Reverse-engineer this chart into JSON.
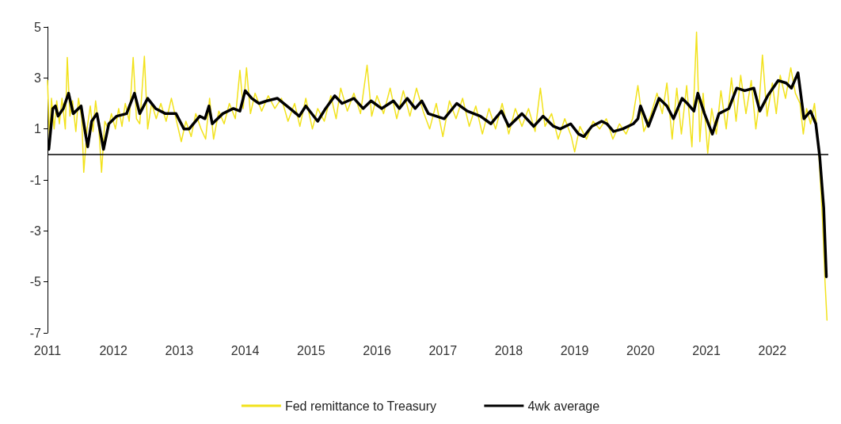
{
  "chart_data": {
    "type": "line",
    "x": [
      2011.0,
      2011.03,
      2011.06,
      2011.1,
      2011.14,
      2011.18,
      2011.22,
      2011.27,
      2011.3,
      2011.34,
      2011.38,
      2011.43,
      2011.47,
      2011.52,
      2011.55,
      2011.6,
      2011.65,
      2011.69,
      2011.73,
      2011.78,
      2011.82,
      2011.87,
      2011.92,
      2011.97,
      2012.03,
      2012.08,
      2012.13,
      2012.18,
      2012.24,
      2012.3,
      2012.35,
      2012.4,
      2012.47,
      2012.52,
      2012.58,
      2012.65,
      2012.72,
      2012.8,
      2012.88,
      2012.95,
      2013.03,
      2013.1,
      2013.18,
      2013.25,
      2013.33,
      2013.4,
      2013.46,
      2013.52,
      2013.6,
      2013.68,
      2013.76,
      2013.85,
      2013.92,
      2013.97,
      2014.02,
      2014.08,
      2014.15,
      2014.25,
      2014.35,
      2014.45,
      2014.55,
      2014.65,
      2014.75,
      2014.83,
      2014.92,
      2015.02,
      2015.1,
      2015.2,
      2015.3,
      2015.38,
      2015.45,
      2015.55,
      2015.65,
      2015.75,
      2015.85,
      2015.92,
      2016.0,
      2016.1,
      2016.2,
      2016.3,
      2016.4,
      2016.5,
      2016.6,
      2016.7,
      2016.8,
      2016.9,
      2017.0,
      2017.1,
      2017.2,
      2017.3,
      2017.4,
      2017.5,
      2017.6,
      2017.7,
      2017.8,
      2017.9,
      2018.0,
      2018.1,
      2018.2,
      2018.3,
      2018.4,
      2018.48,
      2018.55,
      2018.65,
      2018.75,
      2018.85,
      2018.95,
      2019.0,
      2019.08,
      2019.18,
      2019.28,
      2019.38,
      2019.48,
      2019.58,
      2019.68,
      2019.78,
      2019.88,
      2019.96,
      2020.05,
      2020.15,
      2020.25,
      2020.33,
      2020.4,
      2020.48,
      2020.55,
      2020.62,
      2020.7,
      2020.78,
      2020.85,
      2020.9,
      2020.95,
      2021.02,
      2021.08,
      2021.15,
      2021.22,
      2021.3,
      2021.38,
      2021.45,
      2021.52,
      2021.6,
      2021.68,
      2021.75,
      2021.8,
      2021.85,
      2021.92,
      2022.0,
      2022.06,
      2022.12,
      2022.2,
      2022.28,
      2022.35,
      2022.42,
      2022.47,
      2022.52,
      2022.58,
      2022.64,
      2022.7,
      2022.76,
      2022.8,
      2022.83
    ],
    "series": [
      {
        "name": "Fed remittance to Treasury",
        "color": "#f2e21c",
        "values": [
          2.9,
          0.6,
          2.2,
          1.0,
          2.1,
          1.2,
          2.2,
          1.0,
          3.8,
          1.5,
          2.1,
          0.9,
          2.2,
          1.4,
          -0.7,
          1.0,
          1.9,
          0.9,
          2.1,
          1.0,
          -0.7,
          1.3,
          1.0,
          1.6,
          1.0,
          1.8,
          1.1,
          2.0,
          1.3,
          3.8,
          1.4,
          1.2,
          3.85,
          1.0,
          2.0,
          1.4,
          2.0,
          1.3,
          2.2,
          1.4,
          0.5,
          1.3,
          0.7,
          1.6,
          1.0,
          0.6,
          2.2,
          0.6,
          1.7,
          1.2,
          2.0,
          1.4,
          3.3,
          1.8,
          3.4,
          1.6,
          2.4,
          1.7,
          2.3,
          1.8,
          2.2,
          1.3,
          2.0,
          1.1,
          2.2,
          1.0,
          1.8,
          1.3,
          2.3,
          1.4,
          2.6,
          1.7,
          2.4,
          1.6,
          3.5,
          1.5,
          2.3,
          1.6,
          2.6,
          1.4,
          2.5,
          1.5,
          2.6,
          1.7,
          1.0,
          2.0,
          0.7,
          2.1,
          1.4,
          2.2,
          1.1,
          1.9,
          0.8,
          1.8,
          1.0,
          2.0,
          0.8,
          1.8,
          1.1,
          1.8,
          0.9,
          2.6,
          1.1,
          1.6,
          0.6,
          1.4,
          0.7,
          0.1,
          1.1,
          0.6,
          1.3,
          1.0,
          1.4,
          0.6,
          1.2,
          0.8,
          1.4,
          2.7,
          0.9,
          1.5,
          2.4,
          1.6,
          2.8,
          0.6,
          2.6,
          0.8,
          2.7,
          0.3,
          4.8,
          0.5,
          2.4,
          0.05,
          1.8,
          0.8,
          2.5,
          1.0,
          3.0,
          1.3,
          3.1,
          1.6,
          2.9,
          1.0,
          2.0,
          3.9,
          1.5,
          2.8,
          1.6,
          3.1,
          2.2,
          3.4,
          2.4,
          2.0,
          0.8,
          1.8,
          1.2,
          2.0,
          0.3,
          -2.5,
          -5.0,
          -6.5
        ]
      },
      {
        "name": "4wk average",
        "color": "#000000",
        "x": [
          2011.02,
          2011.08,
          2011.12,
          2011.16,
          2011.24,
          2011.32,
          2011.39,
          2011.51,
          2011.57,
          2011.61,
          2011.67,
          2011.75,
          2011.85,
          2011.93,
          2012.05,
          2012.2,
          2012.32,
          2012.4,
          2012.52,
          2012.64,
          2012.79,
          2012.95,
          2013.07,
          2013.15,
          2013.31,
          2013.39,
          2013.45,
          2013.5,
          2013.66,
          2013.82,
          2013.92,
          2014.0,
          2014.1,
          2014.21,
          2014.33,
          2014.49,
          2014.68,
          2014.82,
          2014.92,
          2015.1,
          2015.22,
          2015.36,
          2015.47,
          2015.65,
          2015.79,
          2015.91,
          2016.07,
          2016.25,
          2016.34,
          2016.46,
          2016.58,
          2016.68,
          2016.78,
          2016.9,
          2017.02,
          2017.21,
          2017.37,
          2017.57,
          2017.73,
          2017.89,
          2018.0,
          2018.2,
          2018.38,
          2018.52,
          2018.68,
          2018.78,
          2018.94,
          2019.06,
          2019.14,
          2019.26,
          2019.41,
          2019.49,
          2019.59,
          2019.73,
          2019.89,
          2019.96,
          2020.0,
          2020.12,
          2020.28,
          2020.4,
          2020.5,
          2020.63,
          2020.71,
          2020.81,
          2020.87,
          2020.97,
          2021.09,
          2021.19,
          2021.34,
          2021.46,
          2021.58,
          2021.72,
          2021.81,
          2021.93,
          2022.09,
          2022.21,
          2022.29,
          2022.39,
          2022.48,
          2022.58,
          2022.66,
          2022.72,
          2022.78,
          2022.82
        ],
        "values": [
          0.2,
          1.8,
          1.9,
          1.5,
          1.8,
          2.4,
          1.6,
          1.9,
          0.9,
          0.3,
          1.3,
          1.6,
          0.2,
          1.2,
          1.5,
          1.6,
          2.4,
          1.6,
          2.2,
          1.8,
          1.6,
          1.6,
          1.0,
          1.0,
          1.5,
          1.4,
          1.9,
          1.2,
          1.6,
          1.8,
          1.7,
          2.5,
          2.2,
          2.0,
          2.1,
          2.2,
          1.8,
          1.5,
          1.9,
          1.3,
          1.8,
          2.3,
          2.0,
          2.2,
          1.8,
          2.1,
          1.8,
          2.1,
          1.8,
          2.2,
          1.8,
          2.1,
          1.6,
          1.5,
          1.4,
          2.0,
          1.7,
          1.5,
          1.2,
          1.7,
          1.1,
          1.6,
          1.1,
          1.5,
          1.1,
          1.0,
          1.2,
          0.8,
          0.7,
          1.1,
          1.3,
          1.2,
          0.9,
          1.0,
          1.2,
          1.4,
          1.9,
          1.1,
          2.2,
          1.9,
          1.4,
          2.2,
          2.0,
          1.7,
          2.4,
          1.6,
          0.8,
          1.6,
          1.8,
          2.6,
          2.5,
          2.6,
          1.7,
          2.3,
          2.9,
          2.8,
          2.6,
          3.2,
          1.4,
          1.7,
          1.2,
          -0.1,
          -2.1,
          -4.8
        ]
      }
    ],
    "xlim": [
      2011,
      2022.85
    ],
    "xticks": [
      2011,
      2012,
      2013,
      2014,
      2015,
      2016,
      2017,
      2018,
      2019,
      2020,
      2021,
      2022
    ],
    "ylim": [
      -7,
      5
    ],
    "yticks": [
      -7,
      -5,
      -3,
      -1,
      1,
      3,
      5
    ],
    "ref_lines": [
      {
        "axis": "y",
        "value": 0,
        "color": "#000000"
      }
    ],
    "grid": false,
    "legend": "bottom",
    "marker": "none",
    "line_style": "solid"
  }
}
